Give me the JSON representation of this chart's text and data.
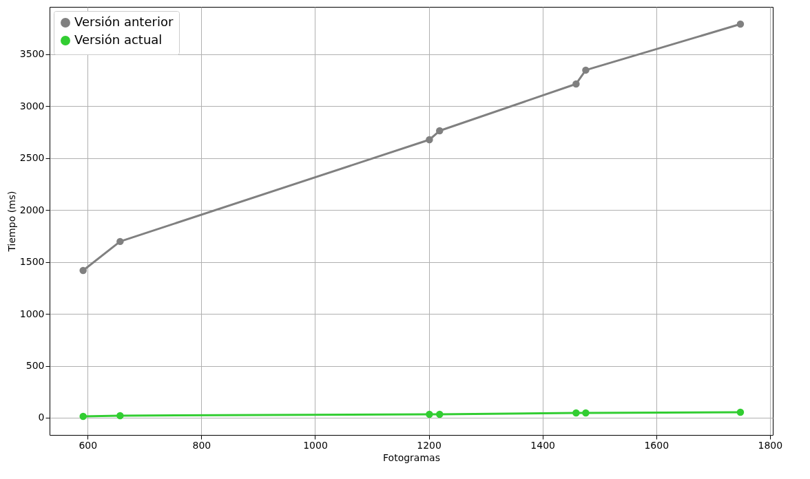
{
  "chart_data": {
    "type": "line",
    "xlabel": "Fotogramas",
    "ylabel": "Tiempo (ms)",
    "x": [
      592,
      657,
      1201,
      1219,
      1459,
      1476,
      1748
    ],
    "series": [
      {
        "name": "Versión anterior",
        "color": "#808080",
        "values": [
          1418,
          1697,
          2677,
          2763,
          3214,
          3347,
          3790
        ]
      },
      {
        "name": "Versión actual",
        "color": "#32cd32",
        "values": [
          13,
          20,
          33,
          33,
          46,
          46,
          53
        ]
      }
    ],
    "xlim": [
      533,
      1805
    ],
    "xticks": [
      600,
      800,
      1000,
      1200,
      1400,
      1600,
      1800
    ],
    "ylim": [
      -166,
      3956
    ],
    "yticks": [
      0,
      500,
      1000,
      1500,
      2000,
      2500,
      3000,
      3500
    ],
    "grid": true,
    "legend": "top left",
    "marker": "circle",
    "line_style": "solid"
  }
}
